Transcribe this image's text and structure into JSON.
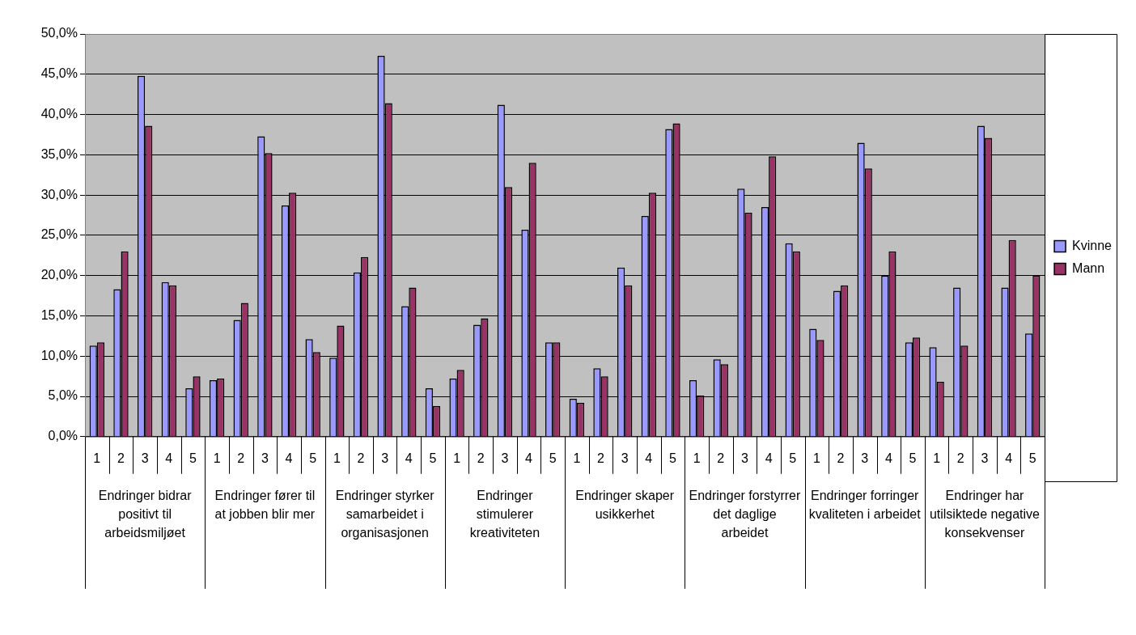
{
  "chart_data": {
    "type": "bar",
    "categories": [
      "1",
      "2",
      "3",
      "4",
      "5",
      "1",
      "2",
      "3",
      "4",
      "5",
      "1",
      "2",
      "3",
      "4",
      "5",
      "1",
      "2",
      "3",
      "4",
      "5",
      "1",
      "2",
      "3",
      "4",
      "5",
      "1",
      "2",
      "3",
      "4",
      "5",
      "1",
      "2",
      "3",
      "4",
      "5",
      "1",
      "2",
      "3",
      "4",
      "5"
    ],
    "series": [
      {
        "name": "Kvinne",
        "color": "#9999ff",
        "values": [
          11.3,
          18.3,
          44.8,
          19.2,
          6.0,
          7.0,
          14.5,
          37.3,
          28.7,
          12.1,
          9.8,
          20.4,
          47.3,
          16.2,
          6.0,
          7.2,
          13.9,
          41.2,
          25.7,
          11.7,
          4.7,
          8.5,
          21.0,
          27.4,
          38.2,
          7.0,
          9.6,
          30.8,
          28.5,
          24.0,
          13.4,
          18.1,
          36.5,
          20.0,
          11.7,
          11.1,
          18.5,
          38.6,
          18.5,
          12.8
        ]
      },
      {
        "name": "Mann",
        "color": "#993366",
        "values": [
          11.7,
          23.0,
          38.6,
          18.8,
          7.5,
          7.2,
          16.6,
          35.2,
          30.3,
          10.5,
          13.8,
          22.3,
          41.4,
          18.5,
          3.8,
          8.3,
          14.7,
          31.0,
          34.0,
          11.7,
          4.2,
          7.5,
          18.8,
          30.3,
          38.9,
          5.1,
          9.0,
          27.8,
          34.8,
          23.0,
          12.0,
          18.8,
          33.3,
          23.0,
          12.3,
          6.8,
          11.3,
          37.1,
          24.4,
          20.0
        ]
      }
    ],
    "annotations": [
      "Endringer bidrar positivt til arbeidsmiljøet",
      "Endringer fører til at jobben blir mer",
      "Endringer styrker samarbeidet i organisasjonen",
      "Endringer stimulerer kreativiteten",
      "Endringer skaper usikkerhet",
      "Endringer forstyrrer det daglige arbeidet",
      "Endringer forringer kvaliteten i arbeidet",
      "Endringer har utilsiktede negative konsekvenser"
    ],
    "ylim": [
      0,
      50
    ],
    "yticks": [
      {
        "value": 0,
        "label": "0,0%"
      },
      {
        "value": 5,
        "label": "5,0%"
      },
      {
        "value": 10,
        "label": "10,0%"
      },
      {
        "value": 15,
        "label": "15,0%"
      },
      {
        "value": 20,
        "label": "20,0%"
      },
      {
        "value": 25,
        "label": "25,0%"
      },
      {
        "value": 30,
        "label": "30,0%"
      },
      {
        "value": 35,
        "label": "35,0%"
      },
      {
        "value": 40,
        "label": "40,0%"
      },
      {
        "value": 45,
        "label": "45,0%"
      },
      {
        "value": 50,
        "label": "50,0%"
      }
    ],
    "grid": "y",
    "legend": "right"
  }
}
